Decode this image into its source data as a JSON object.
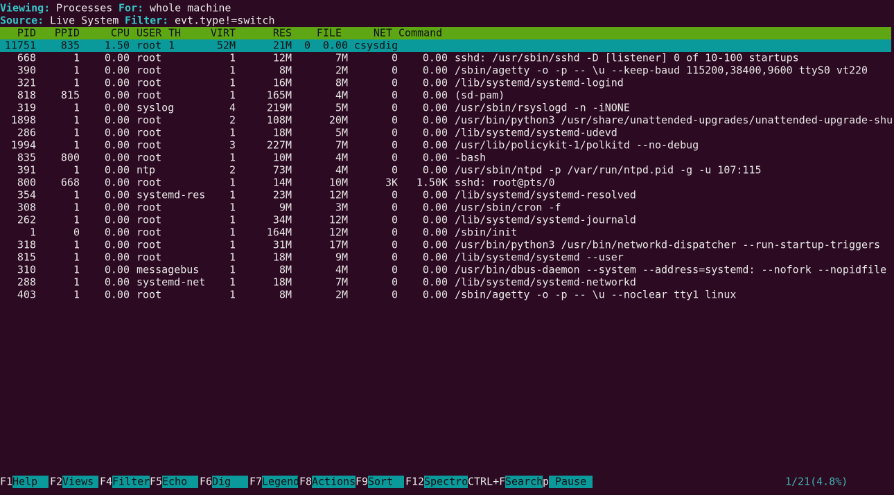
{
  "header": {
    "viewing_label": "Viewing:",
    "viewing": "Processes",
    "for_label": "For:",
    "for": "whole machine",
    "source_label": "Source:",
    "source": "Live System",
    "filter_label": "Filter:",
    "filter": "evt.type!=switch"
  },
  "table": {
    "columns": [
      "PID",
      "PPID",
      "CPU",
      "USER",
      "TH",
      "VIRT",
      "RES",
      "FILE",
      "NET",
      "Command"
    ],
    "selected_row": [
      "11751",
      "835",
      "1.50",
      "root",
      "1",
      "52M",
      "21M",
      "0",
      "0.00",
      "csysdig"
    ],
    "rows": [
      [
        "668",
        "1",
        "0.00",
        "root",
        "1",
        "12M",
        "7M",
        "0",
        "0.00",
        "sshd: /usr/sbin/sshd -D [listener] 0 of 10-100 startups"
      ],
      [
        "390",
        "1",
        "0.00",
        "root",
        "1",
        "8M",
        "2M",
        "0",
        "0.00",
        "/sbin/agetty -o -p -- \\u --keep-baud 115200,38400,9600 ttyS0 vt220"
      ],
      [
        "321",
        "1",
        "0.00",
        "root",
        "1",
        "16M",
        "8M",
        "0",
        "0.00",
        "/lib/systemd/systemd-logind"
      ],
      [
        "818",
        "815",
        "0.00",
        "root",
        "1",
        "165M",
        "4M",
        "0",
        "0.00",
        "(sd-pam)"
      ],
      [
        "319",
        "1",
        "0.00",
        "syslog",
        "4",
        "219M",
        "5M",
        "0",
        "0.00",
        "/usr/sbin/rsyslogd -n -iNONE"
      ],
      [
        "1898",
        "1",
        "0.00",
        "root",
        "2",
        "108M",
        "20M",
        "0",
        "0.00",
        "/usr/bin/python3 /usr/share/unattended-upgrades/unattended-upgrade-shu"
      ],
      [
        "286",
        "1",
        "0.00",
        "root",
        "1",
        "18M",
        "5M",
        "0",
        "0.00",
        "/lib/systemd/systemd-udevd"
      ],
      [
        "1994",
        "1",
        "0.00",
        "root",
        "3",
        "227M",
        "7M",
        "0",
        "0.00",
        "/usr/lib/policykit-1/polkitd --no-debug"
      ],
      [
        "835",
        "800",
        "0.00",
        "root",
        "1",
        "10M",
        "4M",
        "0",
        "0.00",
        "-bash"
      ],
      [
        "391",
        "1",
        "0.00",
        "ntp",
        "2",
        "73M",
        "4M",
        "0",
        "0.00",
        "/usr/sbin/ntpd -p /var/run/ntpd.pid -g -u 107:115"
      ],
      [
        "800",
        "668",
        "0.00",
        "root",
        "1",
        "14M",
        "10M",
        "3K",
        "1.50K",
        "sshd: root@pts/0"
      ],
      [
        "354",
        "1",
        "0.00",
        "systemd-res",
        "1",
        "23M",
        "12M",
        "0",
        "0.00",
        "/lib/systemd/systemd-resolved"
      ],
      [
        "308",
        "1",
        "0.00",
        "root",
        "1",
        "9M",
        "3M",
        "0",
        "0.00",
        "/usr/sbin/cron -f"
      ],
      [
        "262",
        "1",
        "0.00",
        "root",
        "1",
        "34M",
        "12M",
        "0",
        "0.00",
        "/lib/systemd/systemd-journald"
      ],
      [
        "1",
        "0",
        "0.00",
        "root",
        "1",
        "164M",
        "12M",
        "0",
        "0.00",
        "/sbin/init"
      ],
      [
        "318",
        "1",
        "0.00",
        "root",
        "1",
        "31M",
        "17M",
        "0",
        "0.00",
        "/usr/bin/python3 /usr/bin/networkd-dispatcher --run-startup-triggers"
      ],
      [
        "815",
        "1",
        "0.00",
        "root",
        "1",
        "18M",
        "9M",
        "0",
        "0.00",
        "/lib/systemd/systemd --user"
      ],
      [
        "310",
        "1",
        "0.00",
        "messagebus",
        "1",
        "8M",
        "4M",
        "0",
        "0.00",
        "/usr/bin/dbus-daemon --system --address=systemd: --nofork --nopidfile"
      ],
      [
        "288",
        "1",
        "0.00",
        "systemd-net",
        "1",
        "18M",
        "7M",
        "0",
        "0.00",
        "/lib/systemd/systemd-networkd"
      ],
      [
        "403",
        "1",
        "0.00",
        "root",
        "1",
        "8M",
        "2M",
        "0",
        "0.00",
        "/sbin/agetty -o -p -- \\u --noclear tty1 linux"
      ]
    ]
  },
  "footer": {
    "keys": [
      {
        "key": "F1",
        "label": "Help"
      },
      {
        "key": "F2",
        "label": "Views"
      },
      {
        "key": "F4",
        "label": "Filter"
      },
      {
        "key": "F5",
        "label": "Echo"
      },
      {
        "key": "F6",
        "label": "Dig"
      },
      {
        "key": "F7",
        "label": "Legend"
      },
      {
        "key": "F8",
        "label": "Actions"
      },
      {
        "key": "F9",
        "label": "Sort"
      },
      {
        "key": "F12",
        "label": "Spectro"
      },
      {
        "key": "CTRL+F",
        "label": "Search"
      },
      {
        "key": "p",
        "label": "Pause"
      }
    ],
    "status": "1/21(4.8%)"
  }
}
